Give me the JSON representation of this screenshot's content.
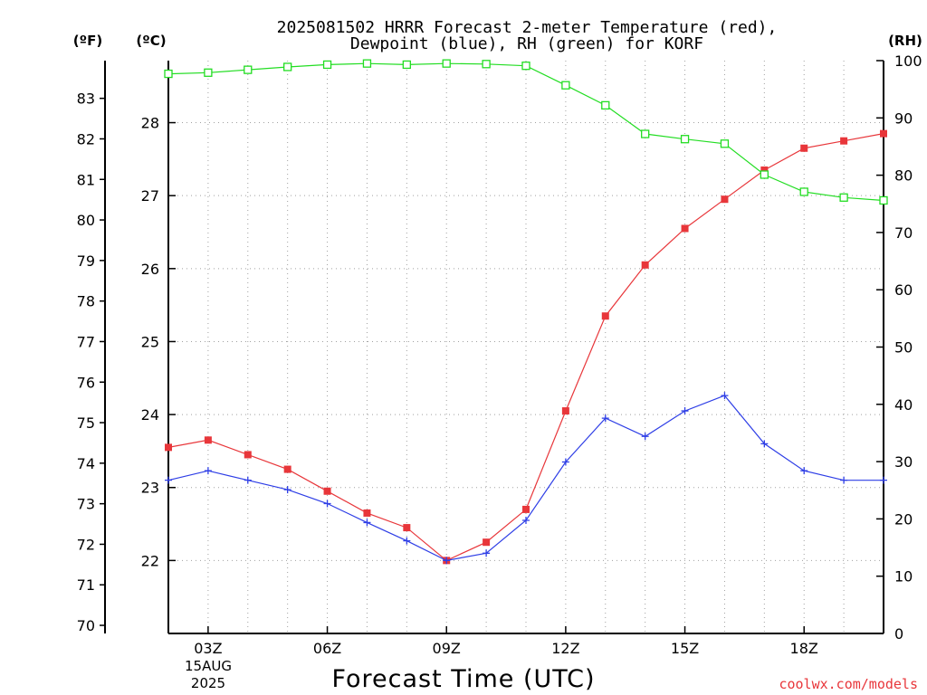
{
  "chart_data": {
    "type": "line",
    "title_line1": "2025081502 HRRR Forecast 2-meter Temperature (red),",
    "title_line2": "Dewpoint (blue), RH (green) for KORF",
    "xlabel": "Forecast Time (UTC)",
    "unit_f": "(ºF)",
    "unit_c": "(ºC)",
    "unit_rh": "(RH)",
    "date_label_day": "15AUG",
    "date_label_year": "2025",
    "credit": "coolwx.com/models",
    "x_hours": [
      2,
      3,
      4,
      5,
      6,
      7,
      8,
      9,
      10,
      11,
      12,
      13,
      14,
      15,
      16,
      17,
      18,
      19,
      20
    ],
    "x_ticks": [
      {
        "hour": 3,
        "label": "03Z"
      },
      {
        "hour": 6,
        "label": "06Z"
      },
      {
        "hour": 9,
        "label": "09Z"
      },
      {
        "hour": 12,
        "label": "12Z"
      },
      {
        "hour": 15,
        "label": "15Z"
      },
      {
        "hour": 18,
        "label": "18Z"
      }
    ],
    "xlim": [
      2,
      20
    ],
    "ylim_c": [
      21.0,
      28.85
    ],
    "ylim_rh": [
      0,
      100
    ],
    "c_ticks": [
      "22",
      "23",
      "24",
      "25",
      "26",
      "27",
      "28"
    ],
    "f_ticks": [
      "70",
      "71",
      "72",
      "73",
      "74",
      "75",
      "76",
      "77",
      "78",
      "79",
      "80",
      "81",
      "82",
      "83"
    ],
    "rh_ticks": [
      "0",
      "10",
      "20",
      "30",
      "40",
      "50",
      "60",
      "70",
      "80",
      "90",
      "100"
    ],
    "grid": true,
    "series": [
      {
        "name": "Temperature",
        "axis": "C",
        "color": "#e8363a",
        "marker": "filled-square",
        "values": [
          23.55,
          23.65,
          23.45,
          23.25,
          22.95,
          22.65,
          22.45,
          22.0,
          22.25,
          22.7,
          24.05,
          25.35,
          26.05,
          26.55,
          26.95,
          27.35,
          27.65,
          27.75,
          27.85
        ]
      },
      {
        "name": "Dewpoint",
        "axis": "C",
        "color": "#2e3ee6",
        "marker": "plus",
        "values": [
          23.1,
          23.23,
          23.1,
          22.97,
          22.78,
          22.52,
          22.27,
          22.0,
          22.1,
          22.55,
          23.35,
          23.95,
          23.7,
          24.05,
          24.26,
          23.6,
          23.23,
          23.1,
          23.1
        ]
      },
      {
        "name": "RH",
        "axis": "RH",
        "color": "#22dd22",
        "marker": "open-square",
        "values": [
          97.7,
          97.9,
          98.4,
          98.9,
          99.3,
          99.5,
          99.3,
          99.5,
          99.4,
          99.1,
          95.7,
          92.2,
          87.2,
          86.3,
          85.5,
          80.1,
          77.1,
          76.1,
          75.6
        ]
      }
    ]
  }
}
